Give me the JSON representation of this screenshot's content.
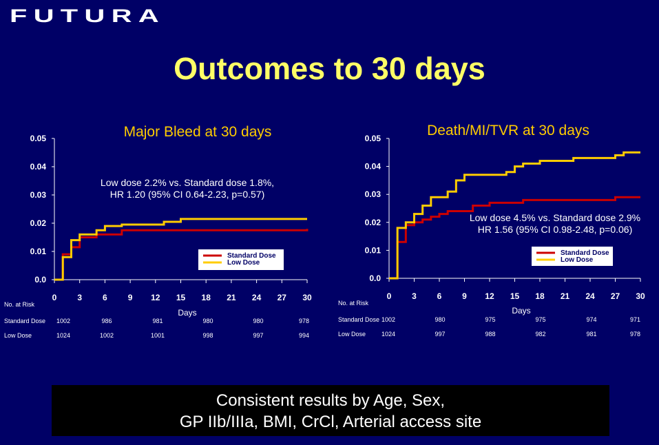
{
  "logo": "FUTURA",
  "title": "Outcomes to 30 days",
  "colors": {
    "background": "#000066",
    "standard": "#cc0000",
    "low": "#ffcc00",
    "title": "#ffff66"
  },
  "banner": {
    "line1": "Consistent results by Age, Sex,",
    "line2": "GP IIb/IIIa, BMI, CrCl, Arterial access site"
  },
  "chart_data": [
    {
      "type": "line",
      "title": "Major Bleed  at  30 days",
      "xlabel": "Days",
      "xticks": [
        "0",
        "3",
        "6",
        "9",
        "12",
        "15",
        "18",
        "21",
        "24",
        "27",
        "30"
      ],
      "yticks": [
        "0.0",
        "0.01",
        "0.02",
        "0.03",
        "0.04",
        "0.05"
      ],
      "xlim": [
        0,
        30
      ],
      "ylim": [
        0,
        0.05
      ],
      "annotation": [
        "Low dose 2.2% vs. Standard dose 1.8%,",
        "HR 1.20 (95% CI 0.64-2.23, p=0.57)"
      ],
      "legend": [
        "Standard Dose",
        "Low Dose"
      ],
      "series": [
        {
          "name": "Standard Dose",
          "color": "#cc0000",
          "x": [
            0,
            1,
            2,
            3,
            5,
            8,
            30
          ],
          "y": [
            0,
            0.009,
            0.0115,
            0.015,
            0.016,
            0.0175,
            0.018
          ]
        },
        {
          "name": "Low Dose",
          "color": "#ffcc00",
          "x": [
            0,
            1,
            2,
            3,
            5,
            6,
            8,
            13,
            15,
            30
          ],
          "y": [
            0,
            0.008,
            0.014,
            0.016,
            0.0175,
            0.019,
            0.0195,
            0.0205,
            0.0215,
            0.0215
          ]
        }
      ],
      "risk_table": {
        "header": "No. at Risk",
        "rows": [
          {
            "label": "Standard Dose",
            "values": [
              "1002",
              "986",
              "981",
              "980",
              "980",
              "978"
            ]
          },
          {
            "label": "Low Dose",
            "values": [
              "1024",
              "1002",
              "1001",
              "998",
              "997",
              "994"
            ]
          }
        ]
      }
    },
    {
      "type": "line",
      "title": "Death/MI/TVR at 30 days",
      "xlabel": "Days",
      "xticks": [
        "0",
        "3",
        "6",
        "9",
        "12",
        "15",
        "18",
        "21",
        "24",
        "27",
        "30"
      ],
      "yticks": [
        "0.0",
        "0.01",
        "0.02",
        "0.03",
        "0.04",
        "0.05"
      ],
      "xlim": [
        0,
        30
      ],
      "ylim": [
        0,
        0.05
      ],
      "annotation": [
        "Low dose 4.5% vs. Standard dose 2.9%",
        "HR 1.56 (95% CI 0.98-2.48, p=0.06)"
      ],
      "legend": [
        "Standard Dose",
        "Low Dose"
      ],
      "series": [
        {
          "name": "Standard Dose",
          "color": "#cc0000",
          "x": [
            0,
            1,
            2,
            3,
            4,
            5,
            6,
            7,
            10,
            12,
            16,
            27,
            30
          ],
          "y": [
            0,
            0.013,
            0.019,
            0.02,
            0.021,
            0.022,
            0.023,
            0.024,
            0.026,
            0.027,
            0.028,
            0.029,
            0.029
          ]
        },
        {
          "name": "Low Dose",
          "color": "#ffcc00",
          "x": [
            0,
            1,
            2,
            3,
            4,
            5,
            7,
            8,
            9,
            14,
            15,
            16,
            18,
            22,
            27,
            28,
            30
          ],
          "y": [
            0,
            0.018,
            0.02,
            0.023,
            0.026,
            0.029,
            0.031,
            0.035,
            0.037,
            0.038,
            0.04,
            0.041,
            0.042,
            0.043,
            0.044,
            0.045,
            0.045
          ]
        }
      ],
      "risk_table": {
        "header": "No. at Risk",
        "rows": [
          {
            "label": "Standard Dose",
            "values": [
              "1002",
              "980",
              "975",
              "975",
              "974",
              "971"
            ]
          },
          {
            "label": "Low Dose",
            "values": [
              "1024",
              "997",
              "988",
              "982",
              "981",
              "978"
            ]
          }
        ]
      }
    }
  ]
}
